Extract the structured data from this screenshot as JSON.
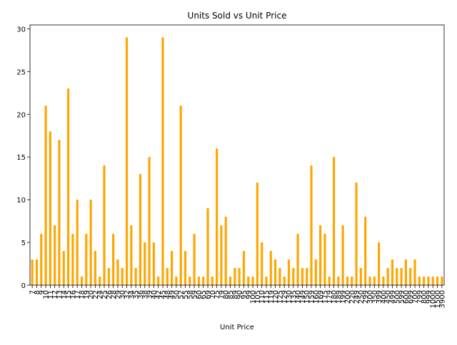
{
  "chart_data": {
    "type": "bar",
    "title": "Units Sold vs Unit Price",
    "xlabel": "Unit Price",
    "color": "#ffa500",
    "categories": [
      "7",
      "8",
      "9",
      "10",
      "11",
      "12",
      "13",
      "14",
      "15",
      "16",
      "17",
      "18",
      "19",
      "20",
      "22",
      "24",
      "25",
      "26",
      "28",
      "29",
      "30",
      "32",
      "34",
      "35",
      "36",
      "38",
      "39",
      "40",
      "42",
      "45",
      "48",
      "49",
      "50",
      "52",
      "55",
      "58",
      "59",
      "60",
      "65",
      "69",
      "70",
      "75",
      "79",
      "80",
      "85",
      "89",
      "90",
      "95",
      "99",
      "100",
      "105",
      "110",
      "115",
      "119",
      "120",
      "125",
      "129",
      "130",
      "135",
      "140",
      "149",
      "150",
      "159",
      "160",
      "169",
      "175",
      "179",
      "180",
      "189",
      "199",
      "200",
      "220",
      "249",
      "250",
      "299",
      "300",
      "350",
      "399",
      "400",
      "450",
      "499",
      "500",
      "599",
      "600",
      "699",
      "700",
      "799",
      "800",
      "999",
      "1000",
      "1500",
      "3900"
    ],
    "values": [
      3,
      3,
      6,
      21,
      18,
      7,
      17,
      4,
      23,
      6,
      10,
      1,
      6,
      10,
      4,
      1,
      14,
      2,
      6,
      3,
      2,
      29,
      7,
      2,
      13,
      5,
      15,
      5,
      1,
      29,
      2,
      4,
      1,
      21,
      4,
      1,
      6,
      1,
      1,
      9,
      1,
      16,
      7,
      8,
      1,
      2,
      2,
      4,
      1,
      1,
      12,
      5,
      1,
      4,
      3,
      2,
      1,
      3,
      2,
      6,
      2,
      2,
      14,
      3,
      7,
      6,
      1,
      15,
      1,
      7,
      1,
      1,
      12,
      2,
      8,
      1,
      1,
      5,
      1,
      2,
      3,
      2,
      2,
      3,
      2,
      3,
      1,
      1,
      1,
      1,
      1,
      1
    ],
    "ylim": [
      0,
      30.45
    ],
    "yticks": [
      0,
      5,
      10,
      15,
      20,
      25,
      30
    ]
  }
}
